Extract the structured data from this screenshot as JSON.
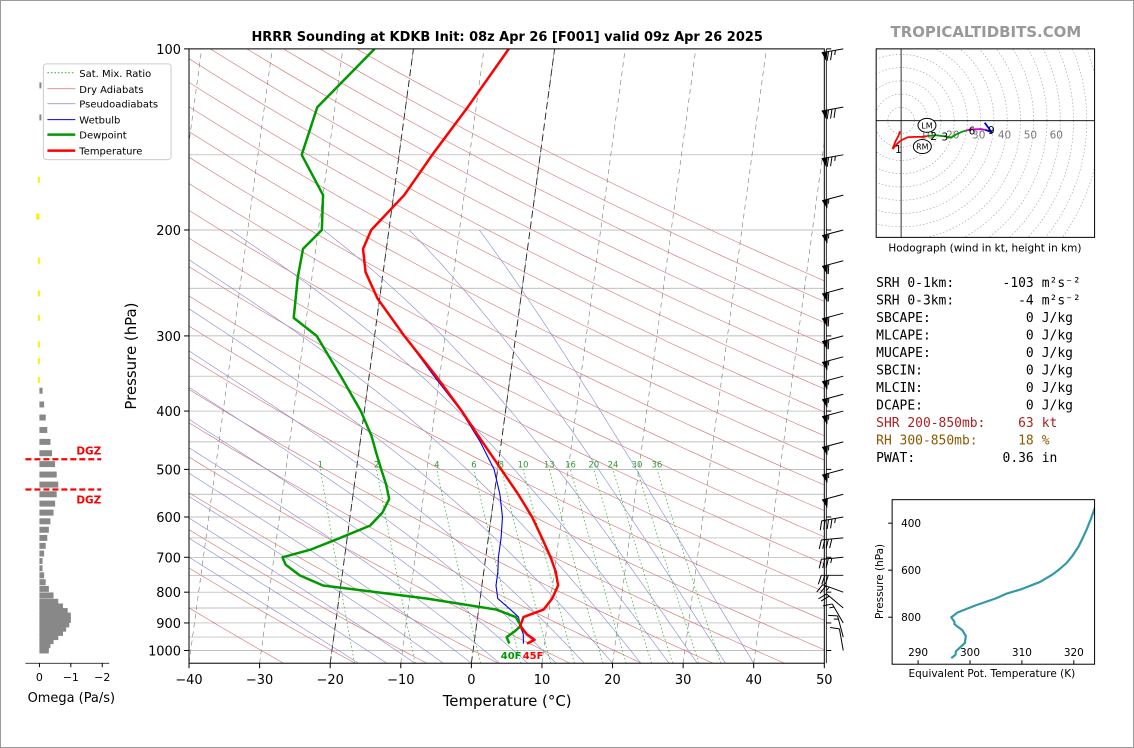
{
  "title": "HRRR Sounding at KDKB Init: 08z Apr 26 [F001] valid 09z Apr 26 2025",
  "watermark": "TROPICALTIDBITS.COM",
  "skewt": {
    "ylabel": "Pressure (hPa)",
    "xlabel": "Temperature (°C)",
    "pressure_ticks": [
      100,
      200,
      300,
      400,
      500,
      600,
      700,
      800,
      900,
      1000
    ],
    "temp_ticks": [
      -40,
      -30,
      -20,
      -10,
      0,
      10,
      20,
      30,
      40,
      50
    ],
    "xlim": [
      -40,
      50
    ],
    "ylim": [
      1050,
      100
    ],
    "mixing_ratio_labels": [
      "1",
      "2",
      "4",
      "6",
      "8",
      "10",
      "13",
      "16",
      "20",
      "24",
      "30",
      "36"
    ],
    "sfc_dewpoint_label": "40F",
    "sfc_temp_label": "45F",
    "legend": [
      "Sat. Mix. Ratio",
      "Dry Adiabats",
      "Pseudoadiabats",
      "Wetbulb",
      "Dewpoint",
      "Temperature"
    ]
  },
  "colors": {
    "temperature": "#ff0000",
    "dewpoint": "#009900",
    "wetbulb": "#0000ee",
    "dry_adiabat": "#d07070",
    "moist_adiabat": "#8888cc",
    "mixing_ratio": "#22aa22",
    "theta_e": "#3399aa",
    "dgz": "#ff0000",
    "shr": "#aa2222",
    "rh": "#8b5a00",
    "omega_bar": "#888888",
    "omega_pos": "#ffee00"
  },
  "chart_data": [
    {
      "type": "line",
      "name_ref": "skewt",
      "series": [
        {
          "name": "Temperature",
          "points": [
            [
              974,
              7.5
            ],
            [
              960,
              8.5
            ],
            [
              940,
              7.3
            ],
            [
              910,
              6.2
            ],
            [
              880,
              6.5
            ],
            [
              855,
              9.2
            ],
            [
              820,
              10.2
            ],
            [
              780,
              10.8
            ],
            [
              740,
              10.2
            ],
            [
              700,
              9.2
            ],
            [
              650,
              7.6
            ],
            [
              600,
              5.8
            ],
            [
              550,
              3.4
            ],
            [
              500,
              0.5
            ],
            [
              450,
              -2.7
            ],
            [
              400,
              -6.2
            ],
            [
              350,
              -10.5
            ],
            [
              300,
              -15.8
            ],
            [
              260,
              -20.3
            ],
            [
              235,
              -22.5
            ],
            [
              215,
              -23.3
            ],
            [
              200,
              -22.5
            ],
            [
              175,
              -18.5
            ],
            [
              150,
              -15.3
            ],
            [
              125,
              -11.2
            ],
            [
              100,
              -6.5
            ]
          ]
        },
        {
          "name": "Dewpoint",
          "points": [
            [
              974,
              5.0
            ],
            [
              950,
              4.5
            ],
            [
              930,
              5.5
            ],
            [
              910,
              6.3
            ],
            [
              880,
              5.4
            ],
            [
              855,
              2.5
            ],
            [
              820,
              -7.5
            ],
            [
              780,
              -22.5
            ],
            [
              750,
              -26.0
            ],
            [
              720,
              -28.2
            ],
            [
              700,
              -28.8
            ],
            [
              680,
              -25.0
            ],
            [
              650,
              -21.0
            ],
            [
              620,
              -17.0
            ],
            [
              590,
              -15.5
            ],
            [
              560,
              -14.8
            ],
            [
              530,
              -15.5
            ],
            [
              500,
              -16.5
            ],
            [
              470,
              -17.5
            ],
            [
              440,
              -18.5
            ],
            [
              400,
              -20.5
            ],
            [
              350,
              -24.0
            ],
            [
              300,
              -28.2
            ],
            [
              280,
              -31.8
            ],
            [
              240,
              -32.0
            ],
            [
              215,
              -31.8
            ],
            [
              200,
              -29.5
            ],
            [
              175,
              -30.0
            ],
            [
              150,
              -33.8
            ],
            [
              125,
              -32.5
            ],
            [
              100,
              -25.5
            ]
          ]
        },
        {
          "name": "Wetbulb",
          "points": [
            [
              974,
              7.0
            ],
            [
              940,
              6.8
            ],
            [
              910,
              6.2
            ],
            [
              880,
              5.8
            ],
            [
              855,
              4.5
            ],
            [
              820,
              2.5
            ],
            [
              780,
              2.0
            ],
            [
              740,
              2.0
            ],
            [
              700,
              1.8
            ],
            [
              650,
              1.8
            ],
            [
              600,
              1.6
            ],
            [
              550,
              0.8
            ],
            [
              500,
              -0.5
            ],
            [
              450,
              -3.0
            ],
            [
              400,
              -6.3
            ],
            [
              350,
              -10.8
            ],
            [
              300,
              -15.8
            ],
            [
              260,
              -20.3
            ],
            [
              235,
              -22.5
            ],
            [
              215,
              -23.3
            ],
            [
              200,
              -22.5
            ],
            [
              175,
              -18.5
            ],
            [
              150,
              -15.3
            ],
            [
              125,
              -11.2
            ],
            [
              100,
              -6.5
            ]
          ]
        }
      ]
    },
    {
      "type": "line",
      "name_ref": "hodograph",
      "title": "Hodograph (wind in kt, height in km)",
      "ring_labels": [
        "10",
        "20",
        "30",
        "40",
        "50",
        "60"
      ],
      "height_labels": [
        "1",
        "2",
        "3",
        "6",
        "9"
      ],
      "storm_motion_labels": [
        "LM",
        "RM"
      ],
      "series": [
        {
          "name": "0-1 km",
          "points": [
            [
              -6.5,
              -21.4
            ],
            [
              -4.2,
              -15.5
            ],
            [
              -2.0,
              -11.5
            ],
            [
              -0.8,
              -8.0
            ]
          ]
        },
        {
          "name": "1-3 km",
          "points": [
            [
              -6.5,
              -21.4
            ],
            [
              -2.6,
              -17.1
            ],
            [
              0.0,
              -14.8
            ],
            [
              5.0,
              -12.5
            ],
            [
              10.0,
              -12.2
            ],
            [
              15.0,
              -12.2
            ],
            [
              20.0,
              -11.6
            ]
          ]
        },
        {
          "name": "3-6 km",
          "points": [
            [
              20.0,
              -11.6
            ],
            [
              26.0,
              -11.0
            ],
            [
              33.0,
              -11.8
            ],
            [
              38.0,
              -12.6
            ],
            [
              41.0,
              -10.7
            ],
            [
              45.5,
              -8.5
            ],
            [
              48.9,
              -7.5
            ]
          ]
        },
        {
          "name": "6-9 km",
          "points": [
            [
              48.9,
              -7.5
            ],
            [
              53.0,
              -6.5
            ],
            [
              57.0,
              -6.5
            ],
            [
              60.0,
              -6.3
            ],
            [
              63.5,
              -6.9
            ]
          ]
        },
        {
          "name": "9+ km",
          "points": [
            [
              63.5,
              -6.9
            ],
            [
              66.5,
              -8.0
            ],
            [
              68.5,
              -9.0
            ],
            [
              63.0,
              -1.5
            ]
          ]
        }
      ],
      "storm_motion": {
        "LM": [
          19.5,
          -3.5
        ],
        "RM": [
          16.0,
          -19.5
        ]
      }
    },
    {
      "type": "line",
      "name_ref": "theta_e",
      "xlabel": "Equivalent Pot. Temperature (K)",
      "ylabel": "Pressure (hPa)",
      "x_ticks": [
        "290",
        "300",
        "310",
        "320"
      ],
      "y_ticks": [
        "400",
        "600",
        "800"
      ],
      "xlim": [
        285,
        324
      ],
      "ylim": [
        1000,
        300
      ],
      "series": [
        {
          "name": "Theta-E",
          "points": [
            [
              974,
              296.4
            ],
            [
              960,
              297.2
            ],
            [
              945,
              297.3
            ],
            [
              930,
              298.0
            ],
            [
              910,
              299.0
            ],
            [
              880,
              299.2
            ],
            [
              855,
              298.5
            ],
            [
              830,
              297.0
            ],
            [
              820,
              297.0
            ],
            [
              800,
              296.4
            ],
            [
              780,
              297.6
            ],
            [
              750,
              301.0
            ],
            [
              720,
              305.0
            ],
            [
              700,
              307.0
            ],
            [
              680,
              310.0
            ],
            [
              650,
              313.5
            ],
            [
              620,
              315.8
            ],
            [
              600,
              317.0
            ],
            [
              570,
              318.6
            ],
            [
              540,
              319.7
            ],
            [
              500,
              320.9
            ],
            [
              460,
              321.8
            ],
            [
              420,
              322.6
            ],
            [
              380,
              323.3
            ],
            [
              350,
              323.8
            ],
            [
              320,
              324.3
            ],
            [
              300,
              324.8
            ]
          ]
        }
      ]
    },
    {
      "type": "bar",
      "name_ref": "omega",
      "xlabel": "Omega (Pa/s)",
      "x_ticks": [
        "0",
        "−1",
        "−2"
      ],
      "dgz_label": "DGZ",
      "values": [
        [
          1000,
          -0.3
        ],
        [
          980,
          -0.35
        ],
        [
          965,
          -0.45
        ],
        [
          950,
          -0.6
        ],
        [
          935,
          -0.75
        ],
        [
          920,
          -0.85
        ],
        [
          905,
          -0.95
        ],
        [
          890,
          -1.0
        ],
        [
          875,
          -1.0
        ],
        [
          860,
          -0.9
        ],
        [
          845,
          -0.75
        ],
        [
          830,
          -0.6
        ],
        [
          810,
          -0.45
        ],
        [
          790,
          -0.3
        ],
        [
          770,
          -0.2
        ],
        [
          750,
          -0.15
        ],
        [
          730,
          -0.1
        ],
        [
          710,
          -0.1
        ],
        [
          690,
          -0.15
        ],
        [
          670,
          -0.2
        ],
        [
          650,
          -0.25
        ],
        [
          630,
          -0.3
        ],
        [
          610,
          -0.35
        ],
        [
          590,
          -0.45
        ],
        [
          570,
          -0.5
        ],
        [
          550,
          -0.55
        ],
        [
          530,
          -0.6
        ],
        [
          510,
          -0.55
        ],
        [
          490,
          -0.5
        ],
        [
          470,
          -0.4
        ],
        [
          450,
          -0.35
        ],
        [
          430,
          -0.25
        ],
        [
          410,
          -0.2
        ],
        [
          390,
          -0.15
        ],
        [
          370,
          -0.1
        ],
        [
          355,
          0.05
        ],
        [
          330,
          0.05
        ],
        [
          310,
          0.05
        ],
        [
          280,
          0.05
        ],
        [
          255,
          0.05
        ],
        [
          225,
          0.05
        ],
        [
          190,
          0.1
        ],
        [
          165,
          0.05
        ],
        [
          130,
          -0.05
        ],
        [
          115,
          -0.05
        ]
      ],
      "dgz_pressures": [
        481,
        540
      ]
    }
  ],
  "stats": [
    {
      "label": "SRH 0-1km:",
      "value": "-103",
      "unit": "m²s⁻²",
      "style": "normal"
    },
    {
      "label": "SRH 0-3km:",
      "value": "-4",
      "unit": "m²s⁻²",
      "style": "normal"
    },
    {
      "label": "SBCAPE:",
      "value": "0",
      "unit": "J/kg",
      "style": "normal"
    },
    {
      "label": "MLCAPE:",
      "value": "0",
      "unit": "J/kg",
      "style": "normal"
    },
    {
      "label": "MUCAPE:",
      "value": "0",
      "unit": "J/kg",
      "style": "normal"
    },
    {
      "label": "SBCIN:",
      "value": "0",
      "unit": "J/kg",
      "style": "normal"
    },
    {
      "label": "MLCIN:",
      "value": "0",
      "unit": "J/kg",
      "style": "normal"
    },
    {
      "label": "DCAPE:",
      "value": "0",
      "unit": "J/kg",
      "style": "normal"
    },
    {
      "label": "SHR 200-850mb:",
      "value": "63",
      "unit": "kt",
      "style": "shr"
    },
    {
      "label": "RH 300-850mb:",
      "value": "18",
      "unit": "%",
      "style": "rh"
    },
    {
      "label": "PWAT:",
      "value": "0.36",
      "unit": "in",
      "style": "normal"
    }
  ],
  "wind_barbs": [
    {
      "p": 100,
      "dir": 260,
      "spd": 75
    },
    {
      "p": 125,
      "dir": 260,
      "spd": 80
    },
    {
      "p": 150,
      "dir": 260,
      "spd": 75
    },
    {
      "p": 175,
      "dir": 255,
      "spd": 55
    },
    {
      "p": 200,
      "dir": 255,
      "spd": 55
    },
    {
      "p": 225,
      "dir": 255,
      "spd": 60
    },
    {
      "p": 250,
      "dir": 255,
      "spd": 60
    },
    {
      "p": 275,
      "dir": 255,
      "spd": 60
    },
    {
      "p": 300,
      "dir": 255,
      "spd": 60
    },
    {
      "p": 325,
      "dir": 255,
      "spd": 55
    },
    {
      "p": 350,
      "dir": 255,
      "spd": 55
    },
    {
      "p": 375,
      "dir": 255,
      "spd": 55
    },
    {
      "p": 400,
      "dir": 255,
      "spd": 55
    },
    {
      "p": 450,
      "dir": 255,
      "spd": 55
    },
    {
      "p": 500,
      "dir": 255,
      "spd": 55
    },
    {
      "p": 550,
      "dir": 255,
      "spd": 50
    },
    {
      "p": 600,
      "dir": 260,
      "spd": 45
    },
    {
      "p": 650,
      "dir": 265,
      "spd": 40
    },
    {
      "p": 700,
      "dir": 265,
      "spd": 35
    },
    {
      "p": 750,
      "dir": 270,
      "spd": 30
    },
    {
      "p": 800,
      "dir": 290,
      "spd": 25
    },
    {
      "p": 850,
      "dir": 310,
      "spd": 20
    },
    {
      "p": 900,
      "dir": 330,
      "spd": 15
    },
    {
      "p": 950,
      "dir": 345,
      "spd": 15
    },
    {
      "p": 1000,
      "dir": 350,
      "spd": 10
    }
  ]
}
